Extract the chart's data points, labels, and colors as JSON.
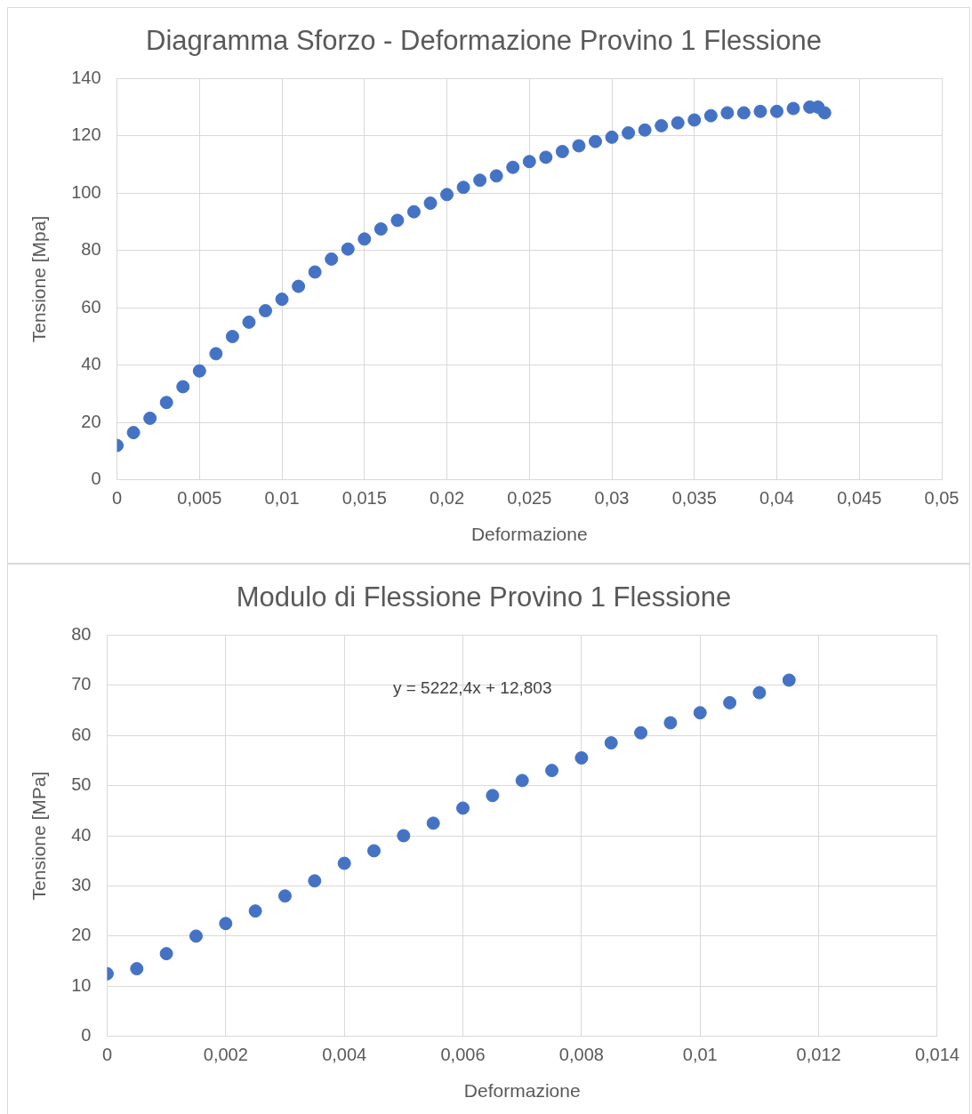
{
  "chart_data": [
    {
      "type": "scatter",
      "title": "Diagramma Sforzo - Deformazione Provino 1 Flessione",
      "xlabel": "Deformazione",
      "ylabel": "Tensione [Mpa]",
      "marker": "circle",
      "grid": true,
      "legend": false,
      "xlim": [
        0,
        0.05
      ],
      "xticks": [
        0,
        {
          "value": 0.005,
          "label": "0,005"
        },
        {
          "value": 0.01,
          "label": "0,01"
        },
        {
          "value": 0.015,
          "label": "0,015"
        },
        {
          "value": 0.02,
          "label": "0,02"
        },
        {
          "value": 0.025,
          "label": "0,025"
        },
        {
          "value": 0.03,
          "label": "0,03"
        },
        {
          "value": 0.035,
          "label": "0,035"
        },
        {
          "value": 0.04,
          "label": "0,04"
        },
        {
          "value": 0.045,
          "label": "0,045"
        },
        {
          "value": 0.05,
          "label": "0,05"
        }
      ],
      "ylim": [
        0,
        140
      ],
      "yticks": [
        0,
        20,
        40,
        60,
        80,
        100,
        120,
        140
      ],
      "series": [
        {
          "color": "#4472c4",
          "x": [
            0,
            0.001,
            0.002,
            0.003,
            0.004,
            0.005,
            0.006,
            0.007,
            0.008,
            0.009,
            0.01,
            0.011,
            0.012,
            0.013,
            0.014,
            0.015,
            0.016,
            0.017,
            0.018,
            0.019,
            0.02,
            0.021,
            0.022,
            0.023,
            0.024,
            0.025,
            0.026,
            0.027,
            0.028,
            0.029,
            0.03,
            0.031,
            0.032,
            0.033,
            0.034,
            0.035,
            0.036,
            0.037,
            0.038,
            0.039,
            0.04,
            0.041,
            0.042,
            0.0425,
            0.0429
          ],
          "values": [
            12,
            16.5,
            21.5,
            27,
            32.5,
            38,
            44,
            50,
            55,
            59,
            63,
            67.5,
            72.5,
            77,
            80.5,
            84,
            87.5,
            90.5,
            93.5,
            96.5,
            99.5,
            102,
            104.5,
            106,
            109,
            111,
            112.5,
            114.5,
            116.5,
            118,
            119.5,
            121,
            122,
            123.5,
            124.5,
            125.5,
            127,
            128,
            128,
            128.5,
            128.5,
            129.5,
            130,
            130,
            128
          ]
        }
      ]
    },
    {
      "type": "scatter",
      "title": "Modulo di Flessione Provino 1 Flessione",
      "xlabel": "Deformazione",
      "ylabel": "Tensione [MPa]",
      "marker": "circle",
      "grid": true,
      "legend": false,
      "annotations": [
        "y = 5222,4x + 12,803"
      ],
      "xlim": [
        0,
        0.014
      ],
      "xticks": [
        0,
        {
          "value": 0.002,
          "label": "0,002"
        },
        {
          "value": 0.004,
          "label": "0,004"
        },
        {
          "value": 0.006,
          "label": "0,006"
        },
        {
          "value": 0.008,
          "label": "0,008"
        },
        {
          "value": 0.01,
          "label": "0,01"
        },
        {
          "value": 0.012,
          "label": "0,012"
        },
        {
          "value": 0.014,
          "label": "0,014"
        }
      ],
      "ylim": [
        0,
        80
      ],
      "yticks": [
        0,
        10,
        20,
        30,
        40,
        50,
        60,
        70,
        80
      ],
      "series": [
        {
          "color": "#4472c4",
          "x": [
            0,
            0.0005,
            0.001,
            0.0015,
            0.002,
            0.0025,
            0.003,
            0.0035,
            0.004,
            0.0045,
            0.005,
            0.0055,
            0.006,
            0.0065,
            0.007,
            0.0075,
            0.008,
            0.0085,
            0.009,
            0.0095,
            0.01,
            0.0105,
            0.011,
            0.0115
          ],
          "values": [
            12.5,
            13.5,
            16.5,
            20,
            22.5,
            25,
            28,
            31,
            34.5,
            37,
            40,
            42.5,
            45.5,
            48,
            51,
            53,
            55.5,
            58.5,
            60.5,
            62.5,
            64.5,
            66.5,
            68.5,
            71
          ]
        }
      ]
    }
  ]
}
